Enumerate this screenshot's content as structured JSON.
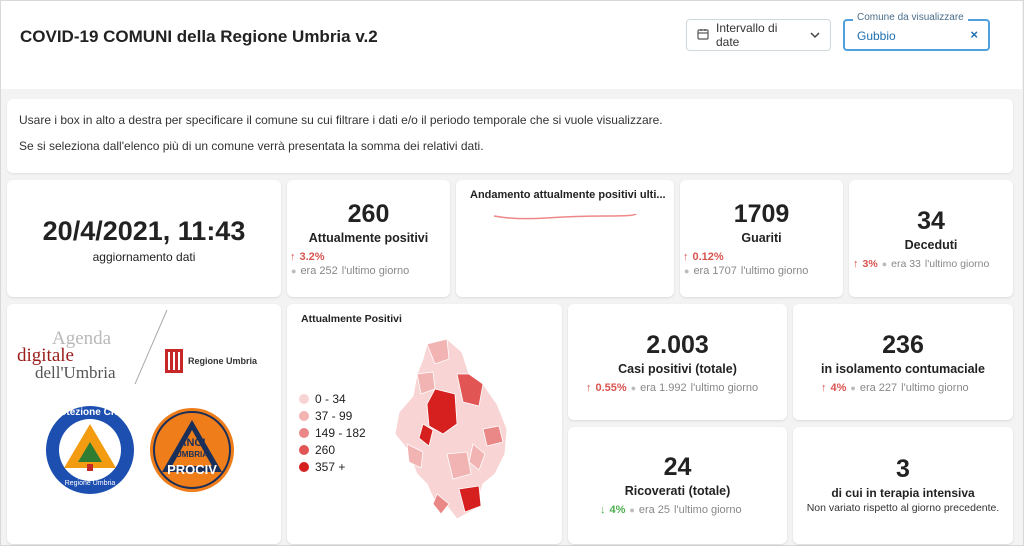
{
  "header": {
    "title": "COVID-19 COMUNI della Regione Umbria v.2",
    "date_filter_label": "Intervallo di date",
    "comune_legend": "Comune da visualizzare",
    "comune_value": "Gubbio",
    "clear_symbol": "×"
  },
  "info": {
    "line1": "Usare i box in alto a destra per specificare il comune su cui filtrare i dati e/o il periodo temporale che si vuole visualizzare.",
    "line2": "Se si seleziona dall'elenco più di un comune verrà presentata la somma dei relativi dati."
  },
  "update": {
    "value": "20/4/2021, 11:43",
    "label": "aggiornamento dati"
  },
  "positivi": {
    "value": "260",
    "label": "Attualmente positivi",
    "pct": "3.2%",
    "prev": "era 252",
    "period": "l'ultimo giorno"
  },
  "trend": {
    "title": "Andamento attualmente positivi ulti..."
  },
  "guariti": {
    "value": "1709",
    "label": "Guariti",
    "pct": "0.12%",
    "prev": "era 1707",
    "period": "l'ultimo giorno"
  },
  "deceduti": {
    "value": "34",
    "label": "Deceduti",
    "pct": "3%",
    "prev": "era 33",
    "period": "l'ultimo giorno"
  },
  "logos": {
    "agenda_line1": "Agenda",
    "agenda_line2": "digitale",
    "agenda_line3": "dell'Umbria",
    "regione": "Regione Umbria",
    "protezione_top": "Protezione Civile",
    "protezione_bottom": "Regione Umbria",
    "anci_1": "ANCI",
    "anci_2": "UMBRIA",
    "anci_3": "PROCIV"
  },
  "map": {
    "title": "Attualmente Positivi",
    "legend": [
      {
        "label": "0 - 34",
        "color": "#f8d4d4"
      },
      {
        "label": "37 - 99",
        "color": "#f2b3b3"
      },
      {
        "label": "149 - 182",
        "color": "#ea8888"
      },
      {
        "label": "260",
        "color": "#e25555"
      },
      {
        "label": "357 +",
        "color": "#d61f1f"
      }
    ]
  },
  "casi": {
    "value": "2.003",
    "label": "Casi positivi (totale)",
    "pct": "0.55%",
    "prev": "era 1.992",
    "period": "l'ultimo giorno"
  },
  "isolamento": {
    "value": "236",
    "label": "in isolamento contumaciale",
    "pct": "4%",
    "prev": "era 227",
    "period": "l'ultimo giorno"
  },
  "ricoverati": {
    "value": "24",
    "label": "Ricoverati (totale)",
    "pct": "4%",
    "prev": "era 25",
    "period": "l'ultimo giorno"
  },
  "terapia": {
    "value": "3",
    "label": "di cui in terapia intensiva",
    "note": "Non variato rispetto al giorno precedente."
  },
  "icons": {
    "calendar": "calendar-icon",
    "chevron": "chevron-down-icon",
    "arrow_up": "↑",
    "arrow_down": "↓",
    "dot": "●"
  }
}
